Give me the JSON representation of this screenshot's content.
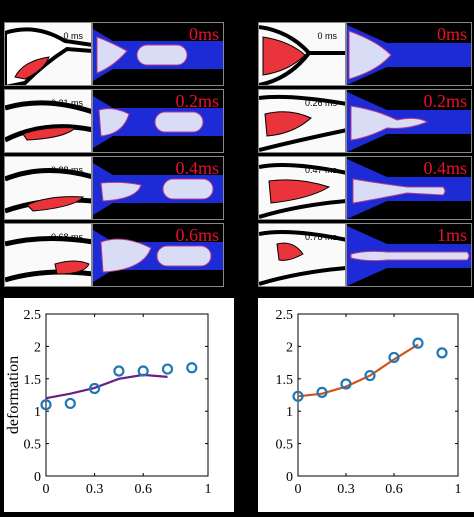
{
  "left_sequence": {
    "frames": [
      {
        "micro_time": "0 ms",
        "sim_time": "0ms"
      },
      {
        "micro_time": "0.21 ms",
        "sim_time": "0.2ms"
      },
      {
        "micro_time": "0.38 ms",
        "sim_time": "0.4ms"
      },
      {
        "micro_time": "0.68 ms",
        "sim_time": "0.6ms"
      }
    ]
  },
  "right_sequence": {
    "frames": [
      {
        "micro_time": "0 ms",
        "sim_time": "0ms"
      },
      {
        "micro_time": "0.26 ms",
        "sim_time": "0.2ms"
      },
      {
        "micro_time": "0.47 ms",
        "sim_time": "0.4ms"
      },
      {
        "micro_time": "0.78 ms",
        "sim_time": "1ms"
      }
    ]
  },
  "colors": {
    "cell_red": "#e8343a",
    "sim_blue": "#1c2bd6",
    "time_red": "#e8102a",
    "marker_blue": "#1f77b4",
    "left_curve": "#6a1e8a",
    "right_curve": "#d2521b"
  },
  "chart_data": [
    {
      "type": "scatter",
      "ylabel": "deformation",
      "xlim": [
        0,
        1
      ],
      "ylim": [
        0,
        2.5
      ],
      "xticks": [
        "0",
        "0.3",
        "0.6",
        "1"
      ],
      "yticks": [
        "0",
        "0.5",
        "1",
        "1.5",
        "2",
        "2.5"
      ],
      "series": [
        {
          "style": "markers",
          "x": [
            0,
            0.15,
            0.3,
            0.45,
            0.6,
            0.75,
            0.9
          ],
          "y": [
            1.1,
            1.12,
            1.35,
            1.62,
            1.62,
            1.65,
            1.67
          ]
        },
        {
          "style": "line",
          "x": [
            0,
            0.15,
            0.3,
            0.45,
            0.6,
            0.75
          ],
          "y": [
            1.2,
            1.27,
            1.36,
            1.5,
            1.56,
            1.53
          ]
        }
      ]
    },
    {
      "type": "scatter",
      "ylabel": "",
      "xlim": [
        0,
        1
      ],
      "ylim": [
        0,
        2.5
      ],
      "xticks": [
        "0",
        "0.3",
        "0.6",
        "1"
      ],
      "yticks": [
        "0",
        "0.5",
        "1",
        "1.5",
        "2",
        "2.5"
      ],
      "series": [
        {
          "style": "markers",
          "x": [
            0,
            0.15,
            0.3,
            0.45,
            0.6,
            0.75,
            0.9
          ],
          "y": [
            1.23,
            1.29,
            1.42,
            1.55,
            1.83,
            2.05,
            1.9
          ]
        },
        {
          "style": "line",
          "x": [
            0,
            0.15,
            0.3,
            0.45,
            0.6,
            0.75
          ],
          "y": [
            1.23,
            1.27,
            1.38,
            1.55,
            1.8,
            2.03
          ]
        }
      ]
    }
  ]
}
